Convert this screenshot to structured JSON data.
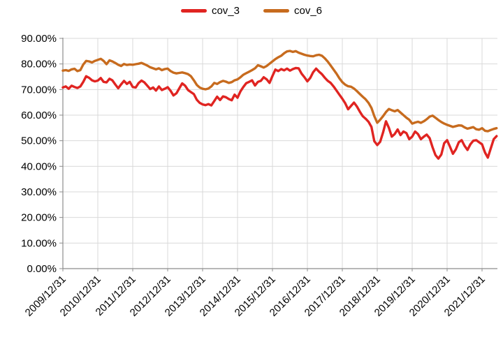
{
  "chart_data": {
    "type": "line",
    "title": "",
    "xlabel": "",
    "ylabel": "",
    "grid": true,
    "legend_position": "top-center",
    "ylim": [
      0,
      90
    ],
    "y_ticks": [
      {
        "value": 0,
        "label": "0.00%"
      },
      {
        "value": 10,
        "label": "10.00%"
      },
      {
        "value": 20,
        "label": "20.00%"
      },
      {
        "value": 30,
        "label": "30.00%"
      },
      {
        "value": 40,
        "label": "40.00%"
      },
      {
        "value": 50,
        "label": "50.00%"
      },
      {
        "value": 60,
        "label": "60.00%"
      },
      {
        "value": 70,
        "label": "70.00%"
      },
      {
        "value": 80,
        "label": "80.00%"
      },
      {
        "value": 90,
        "label": "90.00%"
      }
    ],
    "x_tick_labels": [
      "2009/12/31",
      "2010/12/31",
      "2011/12/31",
      "2012/12/31",
      "2013/12/31",
      "2014/12/31",
      "2015/12/31",
      "2016/12/31",
      "2017/12/31",
      "2018/12/31",
      "2019/12/31",
      "2020/12/31",
      "2021/12/31"
    ],
    "x_is_monthly": true,
    "x_start": "2009/12/31",
    "x_end_approx": "2022/05/31",
    "months_per_x_tick": 12,
    "series": [
      {
        "name": "cov_3",
        "color": "#e02421",
        "values": [
          70.8,
          71.2,
          70.3,
          71.5,
          71.0,
          70.6,
          71.2,
          73.0,
          75.2,
          74.6,
          73.6,
          73.2,
          73.5,
          74.5,
          73.0,
          72.8,
          74.2,
          73.6,
          72.0,
          70.5,
          72.0,
          73.4,
          72.2,
          73.0,
          71.0,
          70.8,
          72.5,
          73.5,
          72.8,
          71.5,
          70.2,
          70.8,
          69.6,
          71.2,
          69.8,
          70.3,
          70.9,
          69.5,
          67.7,
          68.5,
          70.5,
          72.4,
          71.5,
          69.8,
          69.0,
          68.2,
          66.0,
          64.8,
          64.2,
          63.9,
          64.3,
          63.8,
          65.5,
          67.2,
          65.9,
          67.3,
          67.0,
          66.3,
          65.8,
          68.0,
          66.8,
          69.3,
          71.0,
          72.5,
          73.0,
          73.6,
          71.6,
          73.0,
          73.4,
          74.8,
          74.0,
          72.6,
          75.3,
          77.8,
          77.2,
          78.0,
          77.5,
          78.2,
          77.4,
          78.0,
          78.4,
          78.3,
          76.2,
          74.8,
          73.2,
          74.6,
          76.8,
          78.2,
          77.0,
          76.0,
          74.6,
          73.4,
          72.6,
          71.2,
          69.6,
          68.0,
          66.4,
          64.6,
          62.3,
          63.6,
          64.9,
          63.4,
          61.4,
          59.6,
          58.6,
          57.4,
          55.4,
          49.8,
          48.3,
          49.6,
          53.2,
          57.6,
          55.0,
          51.6,
          52.6,
          54.4,
          52.2,
          53.6,
          53.0,
          50.6,
          51.6,
          53.6,
          52.6,
          50.6,
          51.6,
          52.4,
          51.0,
          47.4,
          44.4,
          43.0,
          44.6,
          49.0,
          50.2,
          47.6,
          44.9,
          46.6,
          49.4,
          50.2,
          48.0,
          46.4,
          48.6,
          50.0,
          50.2,
          49.4,
          48.6,
          45.4,
          43.4,
          47.0,
          50.6,
          51.8
        ]
      },
      {
        "name": "cov_6",
        "color": "#c76b1e",
        "values": [
          77.4,
          77.6,
          77.3,
          77.9,
          78.1,
          77.2,
          77.6,
          79.8,
          81.2,
          81.0,
          80.6,
          81.2,
          81.6,
          82.0,
          81.2,
          79.9,
          81.4,
          81.0,
          80.4,
          79.7,
          79.2,
          80.0,
          79.6,
          79.8,
          79.7,
          79.9,
          80.1,
          80.4,
          79.9,
          79.4,
          78.7,
          78.3,
          77.9,
          78.3,
          77.6,
          78.0,
          78.2,
          77.2,
          76.6,
          76.3,
          76.5,
          76.7,
          76.4,
          76.0,
          75.2,
          73.6,
          71.8,
          70.8,
          70.3,
          70.1,
          70.4,
          71.2,
          72.6,
          72.2,
          72.9,
          73.4,
          73.1,
          72.6,
          72.9,
          73.6,
          74.0,
          74.8,
          75.8,
          76.4,
          77.0,
          77.6,
          78.3,
          79.5,
          79.1,
          78.6,
          79.2,
          80.1,
          81.0,
          81.9,
          82.6,
          83.2,
          84.2,
          84.9,
          85.1,
          84.7,
          85.0,
          84.4,
          84.0,
          83.6,
          83.3,
          83.1,
          83.0,
          83.4,
          83.6,
          83.2,
          82.2,
          80.9,
          79.4,
          77.8,
          76.2,
          74.4,
          72.9,
          71.9,
          71.3,
          71.1,
          70.4,
          69.4,
          68.3,
          67.2,
          66.2,
          64.8,
          62.8,
          59.6,
          57.0,
          58.2,
          59.6,
          61.2,
          62.4,
          61.9,
          61.5,
          62.0,
          61.0,
          60.0,
          59.0,
          58.2,
          56.7,
          57.1,
          57.4,
          57.0,
          57.6,
          58.4,
          59.4,
          59.8,
          59.0,
          58.1,
          57.3,
          56.7,
          56.2,
          55.8,
          55.4,
          55.7,
          56.0,
          55.9,
          55.2,
          54.7,
          55.0,
          55.3,
          54.5,
          54.3,
          54.9,
          53.9,
          53.7,
          54.2,
          54.6,
          54.9
        ]
      }
    ]
  },
  "colors": {
    "background": "#ffffff",
    "gridline": "#d9d9d9",
    "axis": "#8c8c8c",
    "tick_text": "#000000"
  }
}
